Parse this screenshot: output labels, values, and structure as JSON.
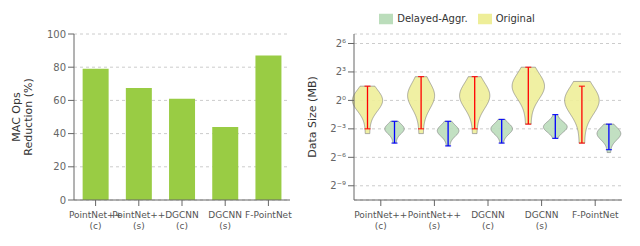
{
  "chart_data": [
    {
      "type": "bar",
      "categories": [
        "PointNet++\n(c)",
        "PointNet++\n(s)",
        "DGCNN\n(c)",
        "DGCNN\n(s)",
        "F-PointNet"
      ],
      "values": [
        79.0,
        67.5,
        61.0,
        44.0,
        87.0
      ],
      "color": "#99cc44",
      "ylabel": "MAC Ops\nReduction (%)",
      "ylim": [
        0,
        100
      ],
      "yticks": [
        0,
        20,
        40,
        60,
        80,
        100
      ],
      "grid": true
    },
    {
      "type": "violin",
      "categories": [
        "PointNet++\n(c)",
        "PointNet++\n(s)",
        "DGCNN\n(c)",
        "DGCNN\n(s)",
        "F-PointNet"
      ],
      "ylabel": "Data Size (MB)",
      "ylim": [
        -10.5,
        7
      ],
      "yticks": [
        {
          "value": -9,
          "label": "2⁻⁹"
        },
        {
          "value": -6,
          "label": "2⁻⁶"
        },
        {
          "value": -3,
          "label": "2⁻³"
        },
        {
          "value": 0,
          "label": "2⁰"
        },
        {
          "value": 3,
          "label": "2³"
        },
        {
          "value": 6,
          "label": "2⁶"
        }
      ],
      "grid": true,
      "legend": "top",
      "series": [
        {
          "name": "Original",
          "color": "#eeee99",
          "violins": [
            {
              "top": 1.5,
              "bottom": -3.5,
              "bulk_center": 0.0,
              "bulk_width": 0.28,
              "tip_width": 0.04
            },
            {
              "top": 2.5,
              "bottom": -3.5,
              "bulk_center": 0.5,
              "bulk_width": 0.25,
              "tip_width": 0.04
            },
            {
              "top": 2.5,
              "bottom": -3.5,
              "bulk_center": 0.5,
              "bulk_width": 0.28,
              "tip_width": 0.04
            },
            {
              "top": 3.5,
              "bottom": -2.5,
              "bulk_center": 1.5,
              "bulk_width": 0.3,
              "tip_width": 0.05
            },
            {
              "top": 2.0,
              "bottom": -4.5,
              "bulk_center": 0.0,
              "bulk_width": 0.32,
              "tip_width": 0.05
            }
          ],
          "error_bars": {
            "color": "red",
            "values": [
              {
                "mean": -1.5,
                "low": -3.0,
                "high": 1.5
              },
              {
                "mean": -0.5,
                "low": -3.0,
                "high": 2.5
              },
              {
                "mean": -0.5,
                "low": -3.0,
                "high": 2.5
              },
              {
                "mean": 1.0,
                "low": -2.5,
                "high": 3.5
              },
              {
                "mean": -0.5,
                "low": -4.5,
                "high": 1.5
              }
            ]
          }
        },
        {
          "name": "Delayed-Aggr.",
          "color": "#bbddbb",
          "violins": [
            {
              "top": -2.2,
              "bottom": -4.5,
              "bulk_center": -3.0,
              "bulk_width": 0.18,
              "tip_width": 0.03
            },
            {
              "top": -2.2,
              "bottom": -4.8,
              "bulk_center": -3.2,
              "bulk_width": 0.2,
              "tip_width": 0.03
            },
            {
              "top": -2.0,
              "bottom": -4.5,
              "bulk_center": -3.0,
              "bulk_width": 0.2,
              "tip_width": 0.03
            },
            {
              "top": -1.5,
              "bottom": -4.0,
              "bulk_center": -2.8,
              "bulk_width": 0.22,
              "tip_width": 0.03
            },
            {
              "top": -2.5,
              "bottom": -5.5,
              "bulk_center": -3.5,
              "bulk_width": 0.22,
              "tip_width": 0.03
            }
          ],
          "error_bars": {
            "color": "blue",
            "values": [
              {
                "mean": -3.0,
                "low": -4.5,
                "high": -2.2
              },
              {
                "mean": -3.2,
                "low": -4.8,
                "high": -2.2
              },
              {
                "mean": -3.0,
                "low": -4.5,
                "high": -2.0
              },
              {
                "mean": -2.8,
                "low": -4.0,
                "high": -1.5
              },
              {
                "mean": -3.5,
                "low": -5.2,
                "high": -2.5
              }
            ]
          }
        }
      ]
    }
  ]
}
